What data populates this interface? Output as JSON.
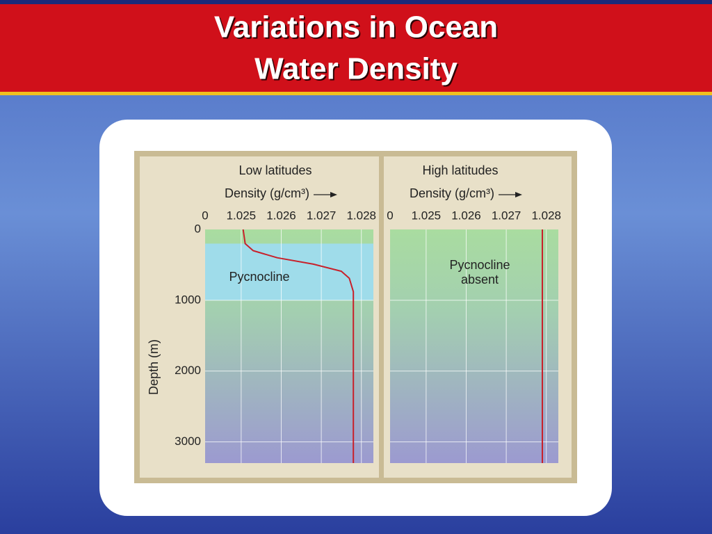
{
  "title": [
    "Variations in Ocean",
    "Water Density"
  ],
  "chart_data": [
    {
      "type": "line",
      "title": "Low latitudes",
      "xlabel": "Density (g/cm³)",
      "ylabel": "Depth (m)",
      "x": [
        1.02505,
        1.0251,
        1.0253,
        1.0259,
        1.0268,
        1.0275,
        1.0277,
        1.0278,
        1.0278
      ],
      "values": [
        0,
        200,
        300,
        400,
        490,
        590,
        690,
        880,
        3300
      ],
      "color": "#c8202a",
      "xlim": [
        1.0241,
        1.0283
      ],
      "xticks": [
        0,
        1.025,
        1.026,
        1.027,
        1.028
      ],
      "x_break": true,
      "ylim": [
        3300,
        0
      ],
      "yticks": [
        0,
        1000,
        2000,
        3000
      ],
      "tick_labels": true,
      "grid": true,
      "bands": [
        {
          "label": "Pycnocline",
          "range": [
            200,
            1000
          ],
          "color": "#9fdcea"
        }
      ],
      "annotation": [
        "Pycnocline"
      ]
    },
    {
      "type": "line",
      "title": "High latitudes",
      "xlabel": "Density (g/cm³)",
      "x": [
        1.0279,
        1.0279
      ],
      "values": [
        0,
        3300
      ],
      "color": "#c8202a",
      "xlim": [
        1.0241,
        1.0283
      ],
      "xticks": [
        0,
        1.025,
        1.026,
        1.027,
        1.028
      ],
      "x_break": true,
      "ylim": [
        3300,
        0
      ],
      "yticks": [
        0,
        1000,
        2000,
        3000
      ],
      "tick_labels": false,
      "grid": true,
      "annotation": [
        "Pycnocline",
        "absent"
      ]
    }
  ]
}
